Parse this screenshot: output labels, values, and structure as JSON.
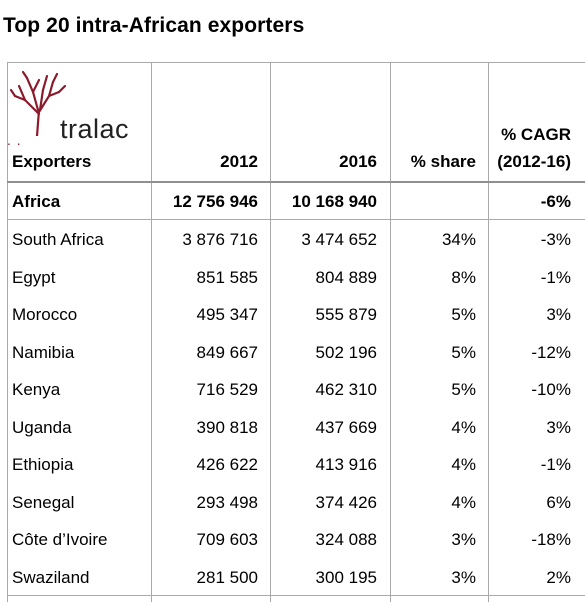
{
  "title": "Top 20 intra-African exporters",
  "logo": {
    "text": "tralac",
    "dots": ". ."
  },
  "headers": {
    "exporters": "Exporters",
    "y2012": "2012",
    "y2016": "2016",
    "share": "% share",
    "cagr_line1": "% CAGR",
    "cagr_line2": "(2012-16)"
  },
  "rows": [
    {
      "name": "Africa",
      "v2012": "12 756 946",
      "v2016": "10 168 940",
      "share": "",
      "cagr": "-6%"
    },
    {
      "name": "South Africa",
      "v2012": "3 876 716",
      "v2016": "3 474 652",
      "share": "34%",
      "cagr": "-3%"
    },
    {
      "name": "Egypt",
      "v2012": "851 585",
      "v2016": "804 889",
      "share": "8%",
      "cagr": "-1%"
    },
    {
      "name": "Morocco",
      "v2012": "495 347",
      "v2016": "555 879",
      "share": "5%",
      "cagr": "3%"
    },
    {
      "name": "Namibia",
      "v2012": "849 667",
      "v2016": "502 196",
      "share": "5%",
      "cagr": "-12%"
    },
    {
      "name": "Kenya",
      "v2012": "716 529",
      "v2016": "462 310",
      "share": "5%",
      "cagr": "-10%"
    },
    {
      "name": "Uganda",
      "v2012": "390 818",
      "v2016": "437 669",
      "share": "4%",
      "cagr": "3%"
    },
    {
      "name": "Ethiopia",
      "v2012": "426 622",
      "v2016": "413 916",
      "share": "4%",
      "cagr": "-1%"
    },
    {
      "name": "Senegal",
      "v2012": "293 498",
      "v2016": "374 426",
      "share": "4%",
      "cagr": "6%"
    },
    {
      "name": "Côte d’Ivoire",
      "v2012": "709 603",
      "v2016": "324 088",
      "share": "3%",
      "cagr": "-18%"
    },
    {
      "name": "Swaziland",
      "v2012": "281 500",
      "v2016": "300 195",
      "share": "3%",
      "cagr": "2%"
    }
  ],
  "colors": {
    "logo_tree": "#8b1a2b",
    "grid": "#a9a9a9"
  }
}
